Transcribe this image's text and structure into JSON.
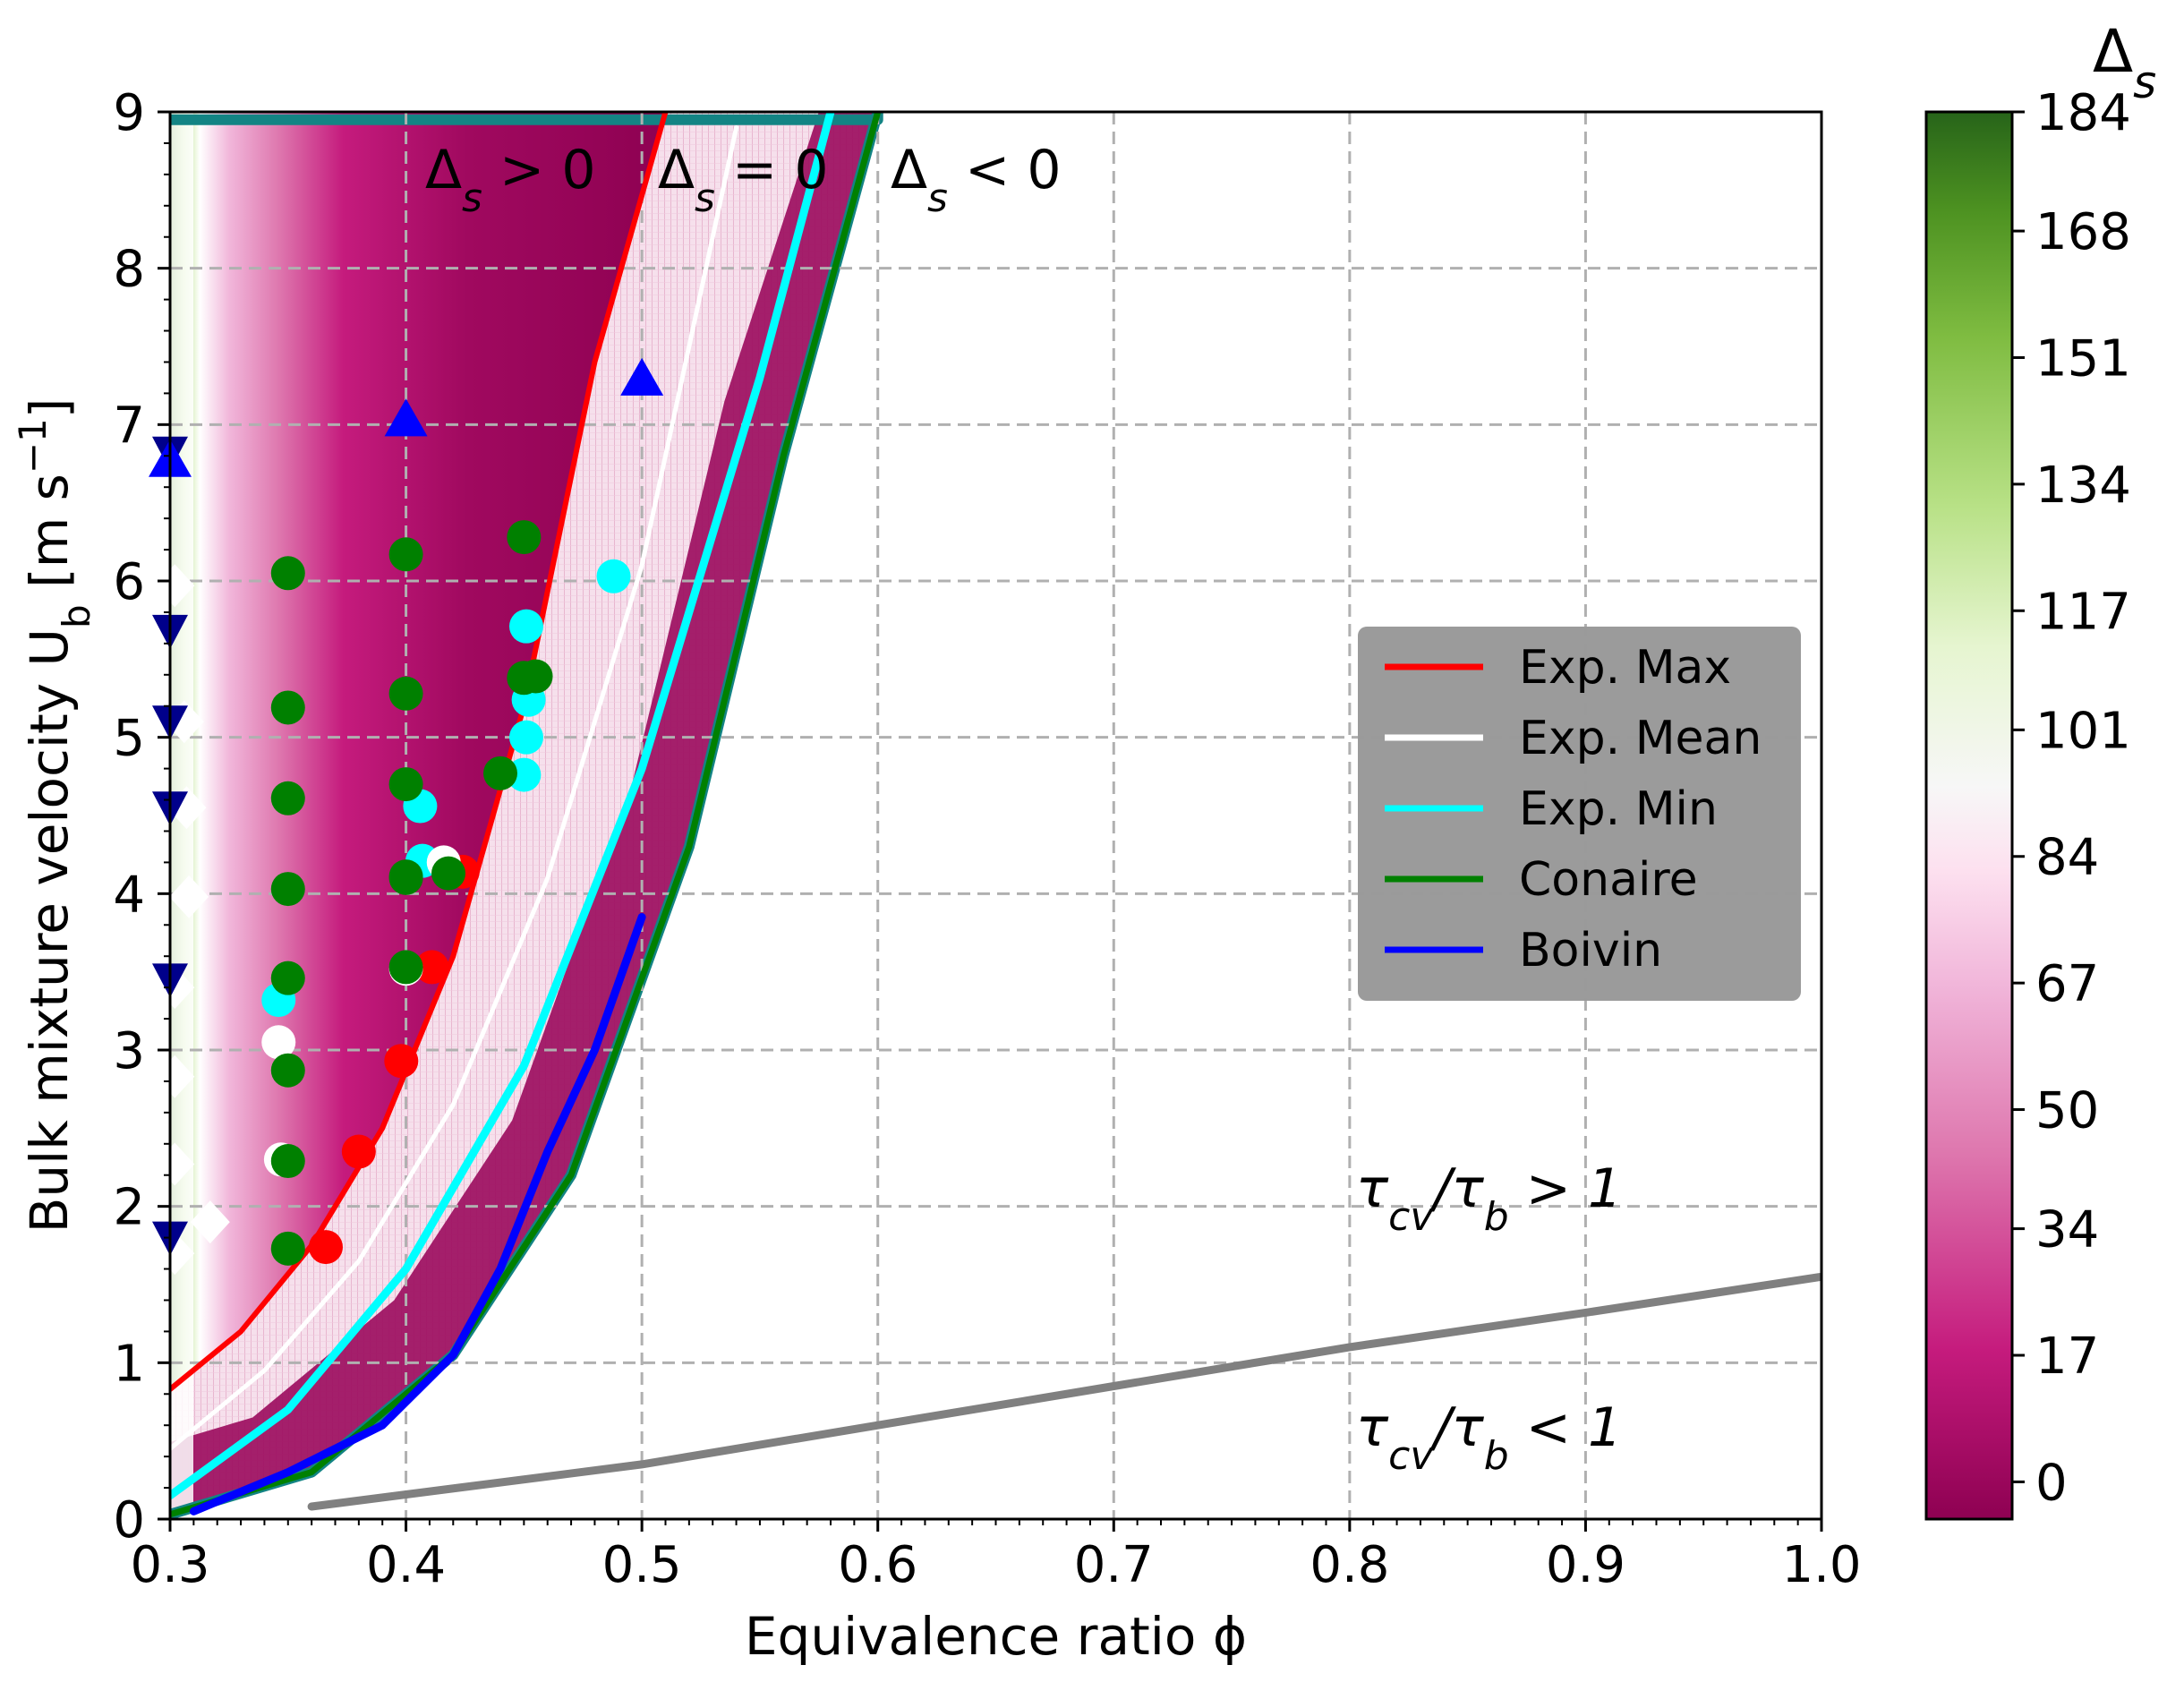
{
  "chart_data": {
    "type": "scatter",
    "xlabel": "Equivalence ratio ϕ",
    "ylabel": "Bulk mixture velocity U",
    "ylabel_sub": "b",
    "ylabel_unit": " [m s",
    "ylabel_unit_sup": "−1",
    "ylabel_unit_end": "]",
    "xlim": [
      0.3,
      1.0
    ],
    "ylim": [
      0,
      9
    ],
    "x_ticks": [
      "0.3",
      "0.4",
      "0.5",
      "0.6",
      "0.7",
      "0.8",
      "0.9",
      "1.0"
    ],
    "y_ticks": [
      "0",
      "1",
      "2",
      "3",
      "4",
      "5",
      "6",
      "7",
      "8",
      "9"
    ],
    "grid": true,
    "annotations": [
      {
        "id": "delta-pos",
        "text": "Δs > 0"
      },
      {
        "id": "delta-zero",
        "text": "Δs = 0"
      },
      {
        "id": "delta-neg",
        "text": "Δs < 0"
      },
      {
        "id": "tau-gt",
        "text": "τcv/τb > 1"
      },
      {
        "id": "tau-lt",
        "text": "τcv/τb < 1"
      }
    ],
    "colorbar": {
      "title": "Δs",
      "range": [
        -5,
        184
      ],
      "ticks": [
        "184",
        "168",
        "151",
        "134",
        "117",
        "101",
        "84",
        "67",
        "50",
        "34",
        "17",
        "0"
      ],
      "tick_values": [
        184,
        168,
        151,
        134,
        117,
        101,
        84,
        67,
        50,
        34,
        17,
        0
      ],
      "colormap": "PiYG"
    },
    "legend": {
      "placement": "center-right",
      "entries": [
        {
          "label": "Exp. Max",
          "color": "#ff0000"
        },
        {
          "label": "Exp. Mean",
          "color": "#ffffff"
        },
        {
          "label": "Exp. Min",
          "color": "#00ffff"
        },
        {
          "label": "Conaire",
          "color": "#008000"
        },
        {
          "label": "Boivin",
          "color": "#0000ff"
        }
      ]
    },
    "series": [
      {
        "name": "Exp. Max",
        "color": "#ff0000",
        "x": [
          0.3,
          0.33,
          0.36,
          0.39,
          0.42,
          0.45,
          0.48,
          0.51
        ],
        "y": [
          0.83,
          1.2,
          1.75,
          2.5,
          3.6,
          5.2,
          7.4,
          9.0
        ]
      },
      {
        "name": "Exp. Mean",
        "color": "#ffffff",
        "x": [
          0.3,
          0.34,
          0.38,
          0.42,
          0.46,
          0.5,
          0.54
        ],
        "y": [
          0.45,
          0.95,
          1.65,
          2.65,
          4.1,
          6.1,
          8.9
        ]
      },
      {
        "name": "Exp. Min",
        "color": "#00ffff",
        "x": [
          0.3,
          0.35,
          0.4,
          0.45,
          0.5,
          0.55,
          0.58
        ],
        "y": [
          0.15,
          0.7,
          1.6,
          2.9,
          4.8,
          7.3,
          9.0
        ]
      },
      {
        "name": "Conaire",
        "color": "#008000",
        "x": [
          0.3,
          0.36,
          0.42,
          0.47,
          0.52,
          0.56,
          0.6
        ],
        "y": [
          0.03,
          0.3,
          1.05,
          2.2,
          4.3,
          6.8,
          9.0
        ]
      },
      {
        "name": "Boivin",
        "color": "#0000ff",
        "x": [
          0.31,
          0.35,
          0.39,
          0.42,
          0.44,
          0.46,
          0.48,
          0.5
        ],
        "y": [
          0.05,
          0.3,
          0.6,
          1.05,
          1.6,
          2.35,
          3.0,
          3.85
        ]
      },
      {
        "name": "tau ratio boundary",
        "color": "#808080",
        "x": [
          0.36,
          0.5,
          0.6,
          0.7,
          0.8,
          0.9,
          1.0
        ],
        "y": [
          0.08,
          0.35,
          0.6,
          0.85,
          1.1,
          1.32,
          1.55
        ]
      }
    ],
    "markers": [
      {
        "group": "exp-max-points",
        "shape": "circle",
        "color": "#ff0000",
        "x": [
          0.366,
          0.38,
          0.398,
          0.411,
          0.424
        ],
        "y": [
          1.74,
          2.35,
          2.93,
          3.53,
          4.14
        ]
      },
      {
        "group": "exp-min-points",
        "shape": "circle",
        "color": "#00ffff",
        "x": [
          0.346,
          0.406,
          0.407,
          0.45,
          0.451,
          0.452,
          0.488,
          0.451
        ],
        "y": [
          3.32,
          4.56,
          4.21,
          4.76,
          5.0,
          5.24,
          6.03,
          5.71
        ]
      },
      {
        "group": "exp-mean-points",
        "shape": "circle",
        "color": "#ffffff",
        "x": [
          0.346,
          0.347,
          0.4,
          0.416
        ],
        "y": [
          3.05,
          2.3,
          3.52,
          4.2
        ]
      },
      {
        "group": "conaire-points",
        "shape": "circle",
        "color": "#008000",
        "x": [
          0.35,
          0.35,
          0.35,
          0.35,
          0.35,
          0.35,
          0.35,
          0.4,
          0.4,
          0.4,
          0.4,
          0.4,
          0.4,
          0.45,
          0.45,
          0.455,
          0.44,
          0.418,
          0.35
        ],
        "y": [
          1.73,
          2.29,
          2.87,
          3.46,
          4.03,
          4.61,
          5.19,
          3.53,
          4.11,
          4.7,
          5.28,
          6.17,
          4.1,
          6.28,
          5.38,
          5.39,
          4.77,
          4.13,
          6.05
        ]
      },
      {
        "group": "white-diamonds",
        "shape": "diamond",
        "color": "#ffffff",
        "x": [
          0.302,
          0.302,
          0.302,
          0.302,
          0.317,
          0.308,
          0.307,
          0.306,
          0.302
        ],
        "y": [
          1.7,
          2.27,
          2.83,
          3.4,
          1.9,
          3.98,
          4.55,
          5.1,
          5.97
        ]
      },
      {
        "group": "navy-down-triangles",
        "shape": "triangle-down",
        "color": "#00008b",
        "x": [
          0.3,
          0.3,
          0.3,
          0.3,
          0.3,
          0.3
        ],
        "y": [
          1.8,
          3.45,
          4.55,
          5.1,
          5.68,
          6.82
        ]
      },
      {
        "group": "blue-up-triangles",
        "shape": "triangle-up",
        "color": "#0000ff",
        "x": [
          0.3,
          0.4,
          0.5
        ],
        "y": [
          6.78,
          7.04,
          7.3
        ]
      }
    ]
  }
}
